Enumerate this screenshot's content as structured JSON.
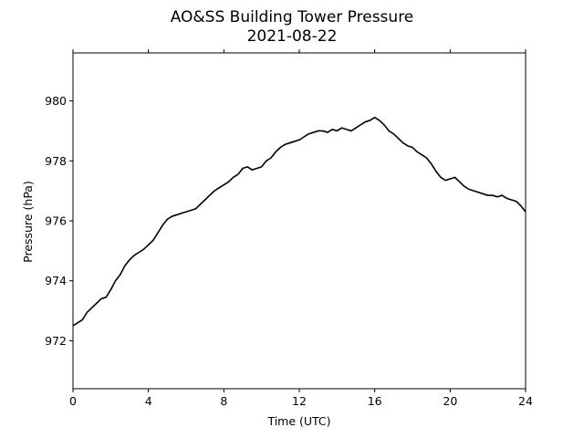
{
  "chart_data": {
    "type": "line",
    "title": "AO&SS Building Tower Pressure",
    "subtitle": "2021-08-22",
    "xlabel": "Time (UTC)",
    "ylabel": "Pressure (hPa)",
    "xlim": [
      0,
      24
    ],
    "ylim": [
      970.4,
      981.6
    ],
    "x_ticks": [
      0,
      4,
      8,
      12,
      16,
      20,
      24
    ],
    "y_ticks": [
      972,
      974,
      976,
      978,
      980
    ],
    "grid": false,
    "legend": "none",
    "line_color": "#000000",
    "series": [
      {
        "x": [
          0,
          0.25,
          0.5,
          0.75,
          1,
          1.25,
          1.5,
          1.75,
          2,
          2.25,
          2.5,
          2.75,
          3,
          3.25,
          3.5,
          3.75,
          4,
          4.25,
          4.5,
          4.75,
          5,
          5.25,
          5.5,
          5.75,
          6,
          6.25,
          6.5,
          6.75,
          7,
          7.25,
          7.5,
          7.75,
          8,
          8.25,
          8.5,
          8.75,
          9,
          9.25,
          9.5,
          9.75,
          10,
          10.25,
          10.5,
          10.75,
          11,
          11.25,
          11.5,
          11.75,
          12,
          12.25,
          12.5,
          12.75,
          13,
          13.25,
          13.5,
          13.75,
          14,
          14.25,
          14.5,
          14.75,
          15,
          15.25,
          15.5,
          15.75,
          16,
          16.25,
          16.5,
          16.75,
          17,
          17.25,
          17.5,
          17.75,
          18,
          18.25,
          18.5,
          18.75,
          19,
          19.25,
          19.5,
          19.75,
          20,
          20.25,
          20.5,
          20.75,
          21,
          21.25,
          21.5,
          21.75,
          22,
          22.25,
          22.5,
          22.75,
          23,
          23.25,
          23.5,
          23.75,
          24
        ],
        "y": [
          972.5,
          972.6,
          972.7,
          972.95,
          973.1,
          973.25,
          973.4,
          973.45,
          973.7,
          974.0,
          974.2,
          974.5,
          974.7,
          974.85,
          974.95,
          975.05,
          975.2,
          975.35,
          975.6,
          975.85,
          976.05,
          976.15,
          976.2,
          976.25,
          976.3,
          976.35,
          976.4,
          976.55,
          976.7,
          976.85,
          977.0,
          977.1,
          977.2,
          977.3,
          977.45,
          977.55,
          977.75,
          977.8,
          977.7,
          977.75,
          977.8,
          978.0,
          978.1,
          978.3,
          978.45,
          978.55,
          978.6,
          978.65,
          978.7,
          978.8,
          978.9,
          978.95,
          979.0,
          979.0,
          978.95,
          979.05,
          979.0,
          979.1,
          979.05,
          979.0,
          979.1,
          979.2,
          979.3,
          979.35,
          979.45,
          979.35,
          979.2,
          979.0,
          978.9,
          978.75,
          978.6,
          978.5,
          978.45,
          978.3,
          978.2,
          978.1,
          977.9,
          977.65,
          977.45,
          977.35,
          977.4,
          977.45,
          977.3,
          977.15,
          977.05,
          977.0,
          976.95,
          976.9,
          976.85,
          976.85,
          976.8,
          976.85,
          976.75,
          976.7,
          976.65,
          976.5,
          976.3
        ]
      }
    ]
  }
}
